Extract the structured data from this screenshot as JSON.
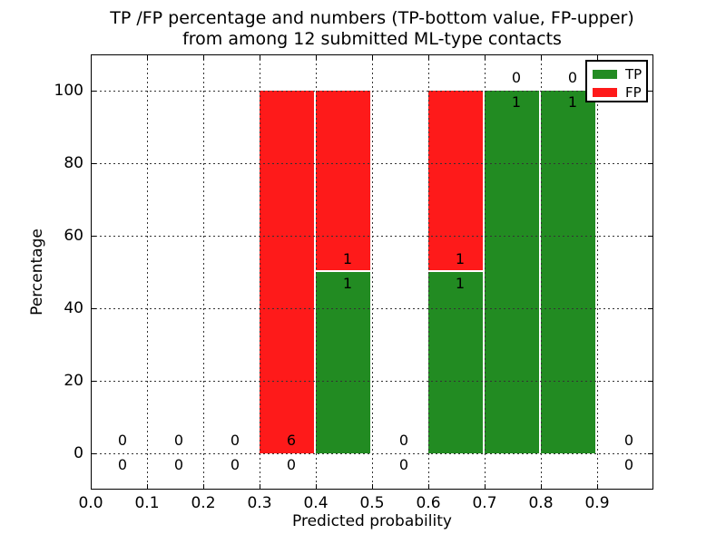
{
  "chart_data": {
    "type": "bar",
    "stacked": true,
    "title_lines": [
      "TP /FP percentage and numbers (TP-bottom value, FP-upper)",
      "from among 12 submitted ML-type contacts"
    ],
    "xlabel": "Predicted probability",
    "ylabel": "Percentage",
    "xlim": [
      0.0,
      1.0
    ],
    "ylim": [
      -10,
      110
    ],
    "grid": "dotted",
    "bar_width": 0.097,
    "xticks": [
      {
        "v": 0.0,
        "label": "0.0"
      },
      {
        "v": 0.1,
        "label": "0.1"
      },
      {
        "v": 0.2,
        "label": "0.2"
      },
      {
        "v": 0.3,
        "label": "0.3"
      },
      {
        "v": 0.4,
        "label": "0.4"
      },
      {
        "v": 0.5,
        "label": "0.5"
      },
      {
        "v": 0.6,
        "label": "0.6"
      },
      {
        "v": 0.7,
        "label": "0.7"
      },
      {
        "v": 0.8,
        "label": "0.8"
      },
      {
        "v": 0.9,
        "label": "0.9"
      }
    ],
    "yticks": [
      {
        "v": 0,
        "label": "0"
      },
      {
        "v": 20,
        "label": "20"
      },
      {
        "v": 40,
        "label": "40"
      },
      {
        "v": 60,
        "label": "60"
      },
      {
        "v": 80,
        "label": "80"
      },
      {
        "v": 100,
        "label": "100"
      }
    ],
    "legend": {
      "position": "upper-right",
      "entries": [
        {
          "label": "TP",
          "series": "tp"
        },
        {
          "label": "FP",
          "series": "fp"
        }
      ]
    },
    "bins": [
      {
        "x_start": 0.0,
        "tp_pct": 0,
        "fp_pct": 0,
        "tp_count": "0",
        "fp_count": "0"
      },
      {
        "x_start": 0.1,
        "tp_pct": 0,
        "fp_pct": 0,
        "tp_count": "0",
        "fp_count": "0"
      },
      {
        "x_start": 0.2,
        "tp_pct": 0,
        "fp_pct": 0,
        "tp_count": "0",
        "fp_count": "0"
      },
      {
        "x_start": 0.3,
        "tp_pct": 0,
        "fp_pct": 100,
        "tp_count": "0",
        "fp_count": "6"
      },
      {
        "x_start": 0.4,
        "tp_pct": 50,
        "fp_pct": 50,
        "tp_count": "1",
        "fp_count": "1"
      },
      {
        "x_start": 0.5,
        "tp_pct": 0,
        "fp_pct": 0,
        "tp_count": "0",
        "fp_count": "0"
      },
      {
        "x_start": 0.6,
        "tp_pct": 50,
        "fp_pct": 50,
        "tp_count": "1",
        "fp_count": "1"
      },
      {
        "x_start": 0.7,
        "tp_pct": 100,
        "fp_pct": 0,
        "tp_count": "1",
        "fp_count": "0"
      },
      {
        "x_start": 0.8,
        "tp_pct": 100,
        "fp_pct": 0,
        "tp_count": "1",
        "fp_count": "0"
      },
      {
        "x_start": 0.9,
        "tp_pct": 0,
        "fp_pct": 0,
        "tp_count": "0",
        "fp_count": "0"
      }
    ],
    "colors": {
      "tp": "#228b22",
      "fp": "#fe1a1a",
      "grid": "#333333",
      "axis": "#000000",
      "text": "#000000",
      "background": "#ffffff"
    }
  }
}
